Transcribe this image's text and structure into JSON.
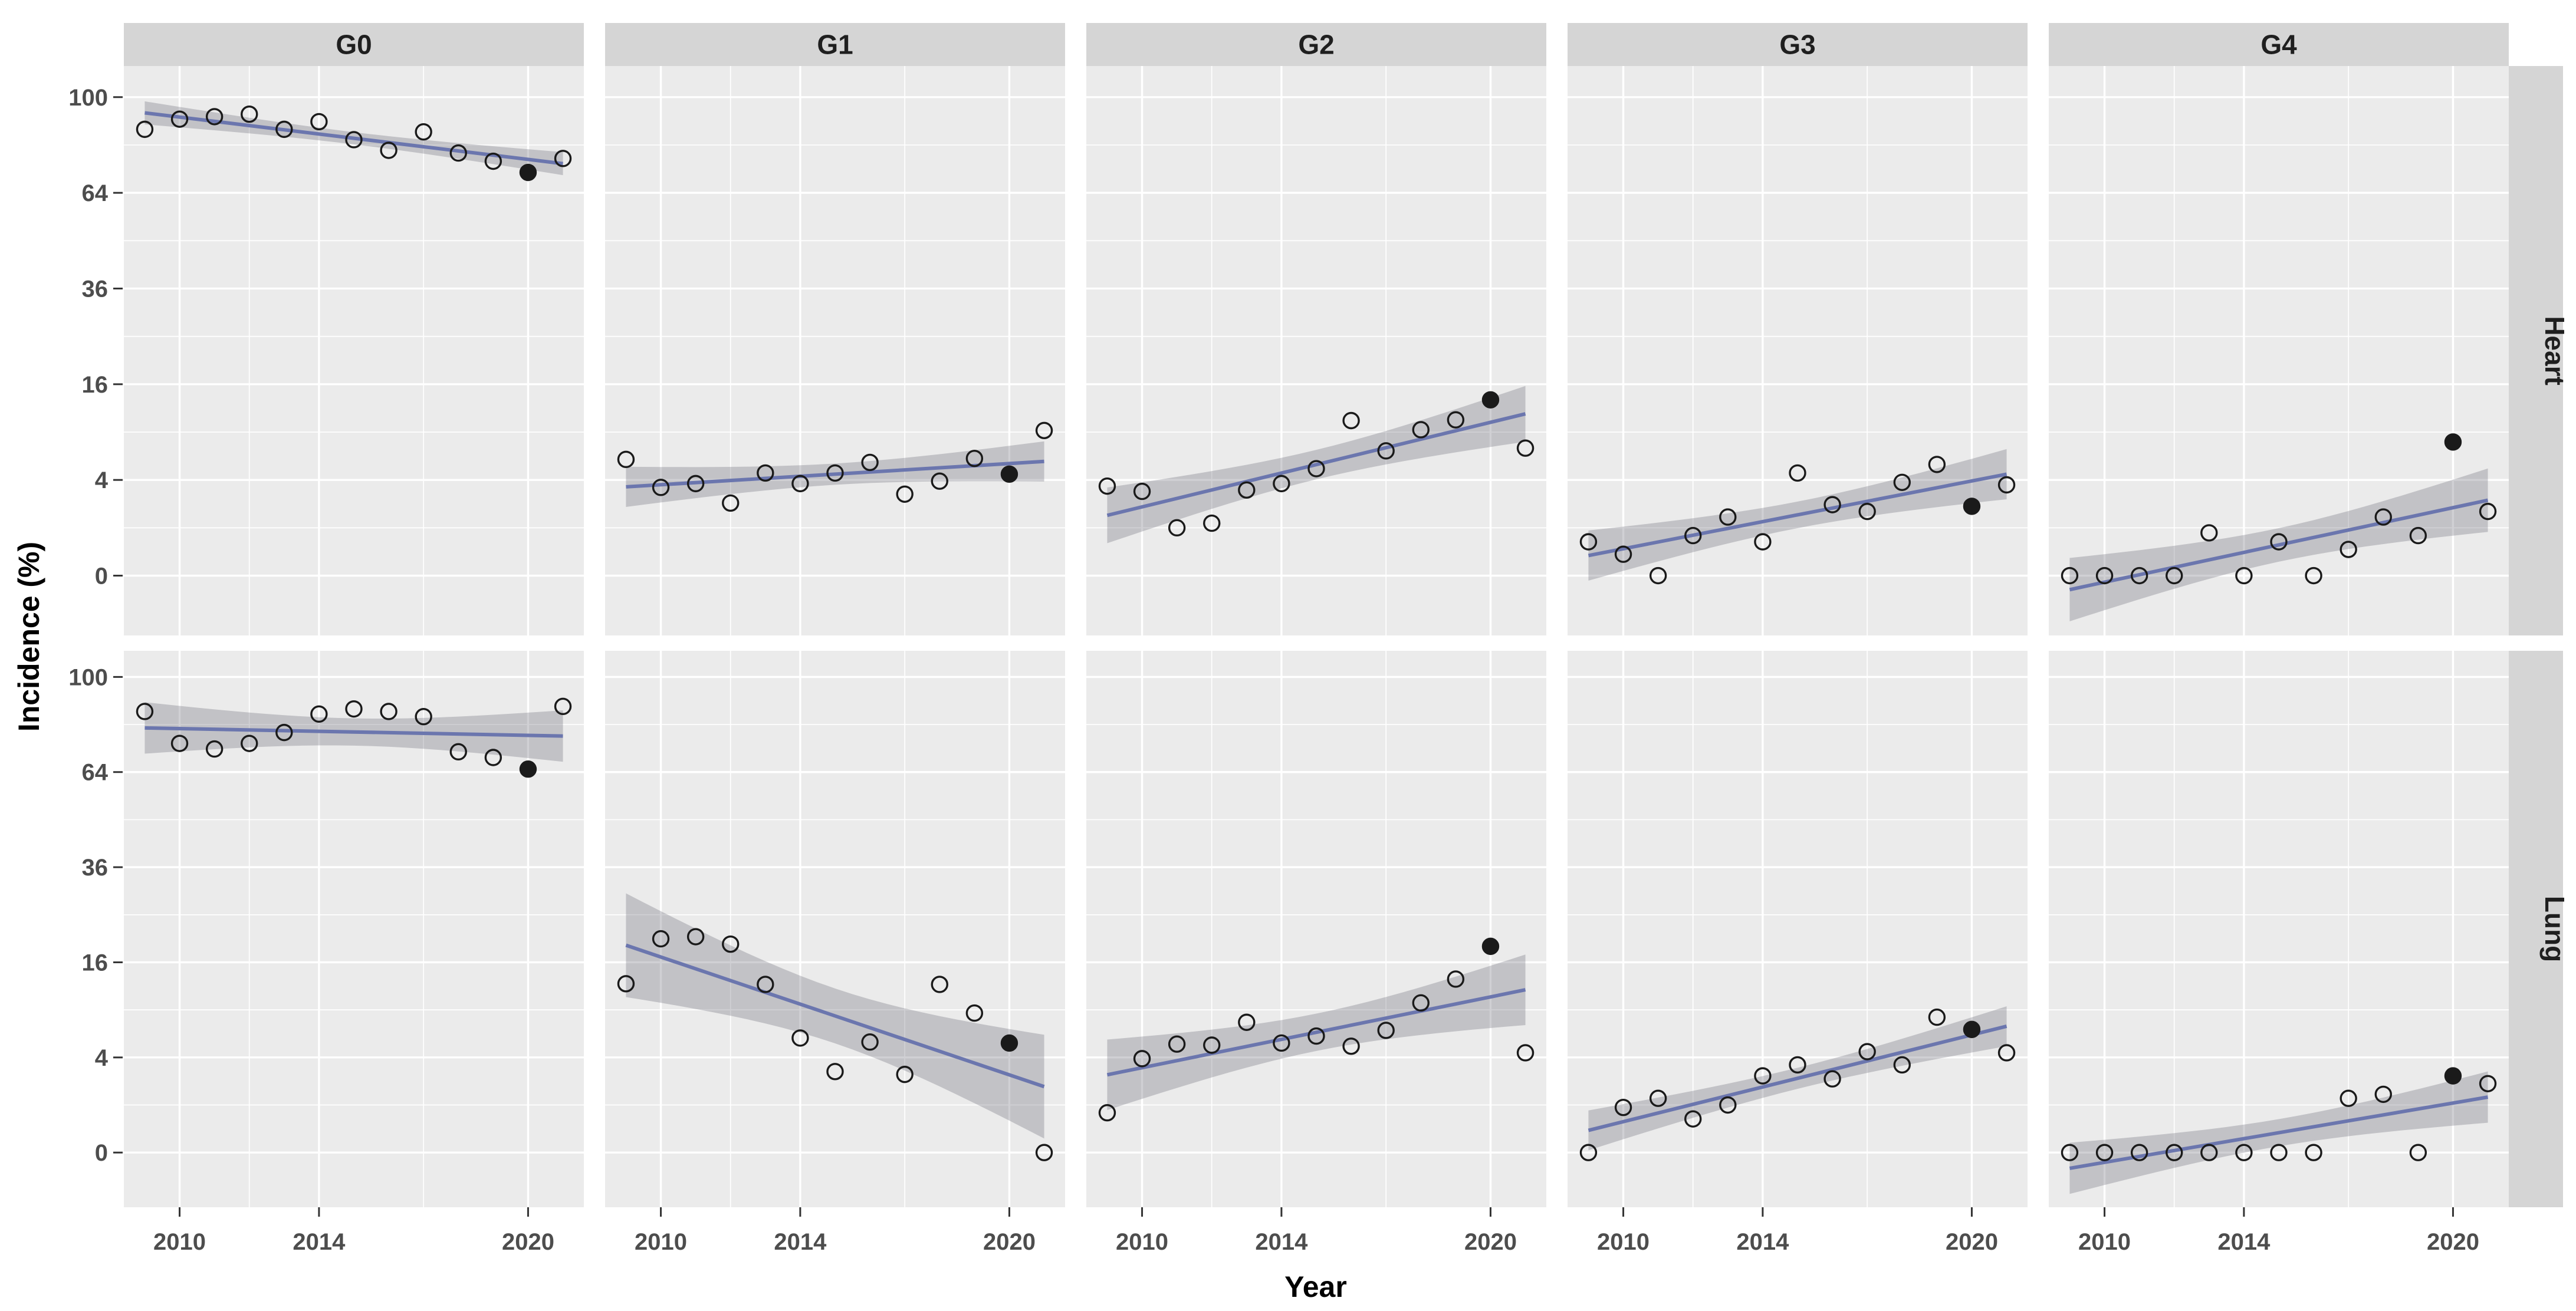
{
  "figure_name": "Incidence by Year faceted scatter plot with linear smooths",
  "axes": {
    "x_title": "Year",
    "y_title": "Incidence (%)",
    "x_ticks": [
      2010,
      2014,
      2020
    ],
    "x_tick_labels": [
      "2010",
      "2014",
      "2020"
    ],
    "x_minor_gridlines": [
      2012,
      2017
    ],
    "x_range": [
      2008.4,
      2021.6
    ],
    "y_scale": "sqrt",
    "y_ticks": [
      100,
      64,
      36,
      16,
      4,
      0
    ],
    "y_tick_labels": [
      "100",
      "64",
      "36",
      "16",
      "4",
      "0"
    ],
    "y_minor_gridlines": [
      81,
      49,
      25,
      9,
      1
    ]
  },
  "facets": {
    "columns": [
      "G0",
      "G1",
      "G2",
      "G3",
      "G4"
    ],
    "rows": [
      "Heart",
      "Lung"
    ]
  },
  "chart_data": {
    "type": "scatter",
    "title": "",
    "xlabel": "Year",
    "ylabel": "Incidence (%)",
    "x": [
      2009,
      2010,
      2011,
      2012,
      2013,
      2014,
      2015,
      2016,
      2017,
      2018,
      2019,
      2020,
      2021
    ],
    "highlight_year": 2020,
    "highlight_style": "filled black point (all other years are open circles)",
    "smoother": "linear regression with 95% confidence band, fit on sqrt-transformed incidence",
    "ylim_sqrt_units": [
      -1.2,
      10.7
    ],
    "grid": true,
    "legend": false,
    "series": [
      {
        "row": "Heart",
        "col": "G0",
        "values": [
          87,
          91,
          92,
          93,
          87,
          90,
          83,
          79,
          86,
          78,
          75,
          71,
          76
        ]
      },
      {
        "row": "Heart",
        "col": "G1",
        "values": [
          5.9,
          3.4,
          3.7,
          2.3,
          4.6,
          3.7,
          4.6,
          5.6,
          2.9,
          3.9,
          6.0,
          4.5,
          9.2
        ]
      },
      {
        "row": "Heart",
        "col": "G2",
        "values": [
          3.5,
          3.1,
          1.0,
          1.2,
          3.2,
          3.7,
          5.0,
          10.5,
          6.8,
          9.3,
          10.6,
          13.5,
          7.1
        ]
      },
      {
        "row": "Heart",
        "col": "G3",
        "values": [
          0.5,
          0.2,
          0.0,
          0.7,
          1.5,
          0.5,
          4.6,
          2.2,
          1.8,
          3.8,
          5.4,
          2.1,
          3.6
        ]
      },
      {
        "row": "Heart",
        "col": "G4",
        "values": [
          0.0,
          0.0,
          0.0,
          0.0,
          0.8,
          0.0,
          0.5,
          0.0,
          0.3,
          1.5,
          0.7,
          7.8,
          1.8
        ]
      },
      {
        "row": "Lung",
        "col": "G0",
        "values": [
          86,
          74,
          72,
          74,
          78,
          85,
          87,
          86,
          84,
          71,
          69,
          65,
          88
        ]
      },
      {
        "row": "Lung",
        "col": "G1",
        "values": [
          12.6,
          20.2,
          20.6,
          19.2,
          12.5,
          5.8,
          2.9,
          5.4,
          2.7,
          12.5,
          8.6,
          5.3,
          0.0
        ]
      },
      {
        "row": "Lung",
        "col": "G2",
        "values": [
          0.7,
          3.9,
          5.2,
          5.1,
          7.5,
          5.3,
          6.0,
          5.0,
          6.6,
          9.9,
          13.3,
          18.8,
          4.4
        ]
      },
      {
        "row": "Lung",
        "col": "G3",
        "values": [
          0.0,
          0.9,
          1.3,
          0.5,
          1.0,
          2.6,
          3.4,
          2.4,
          4.5,
          3.4,
          8.1,
          6.7,
          4.4
        ]
      },
      {
        "row": "Lung",
        "col": "G4",
        "values": [
          0.0,
          0.0,
          0.0,
          0.0,
          0.0,
          0.0,
          0.0,
          0.0,
          1.3,
          1.5,
          0.0,
          2.6,
          2.1
        ]
      }
    ]
  },
  "colors": {
    "page_bg": "#ffffff",
    "panel_bg": "#ebebeb",
    "gridline": "#ffffff",
    "strip_bg": "#d5d5d5",
    "strip_text": "#1f1f1f",
    "tick_text": "#4d4d4d",
    "tick_mark": "#333333",
    "axis_title_text": "#000000",
    "point_stroke": "#1a1a1a",
    "highlight_point_fill": "#1a1a1a",
    "smooth_line": "#6b76ae",
    "ci_band": "rgba(100,100,112,0.30)"
  }
}
